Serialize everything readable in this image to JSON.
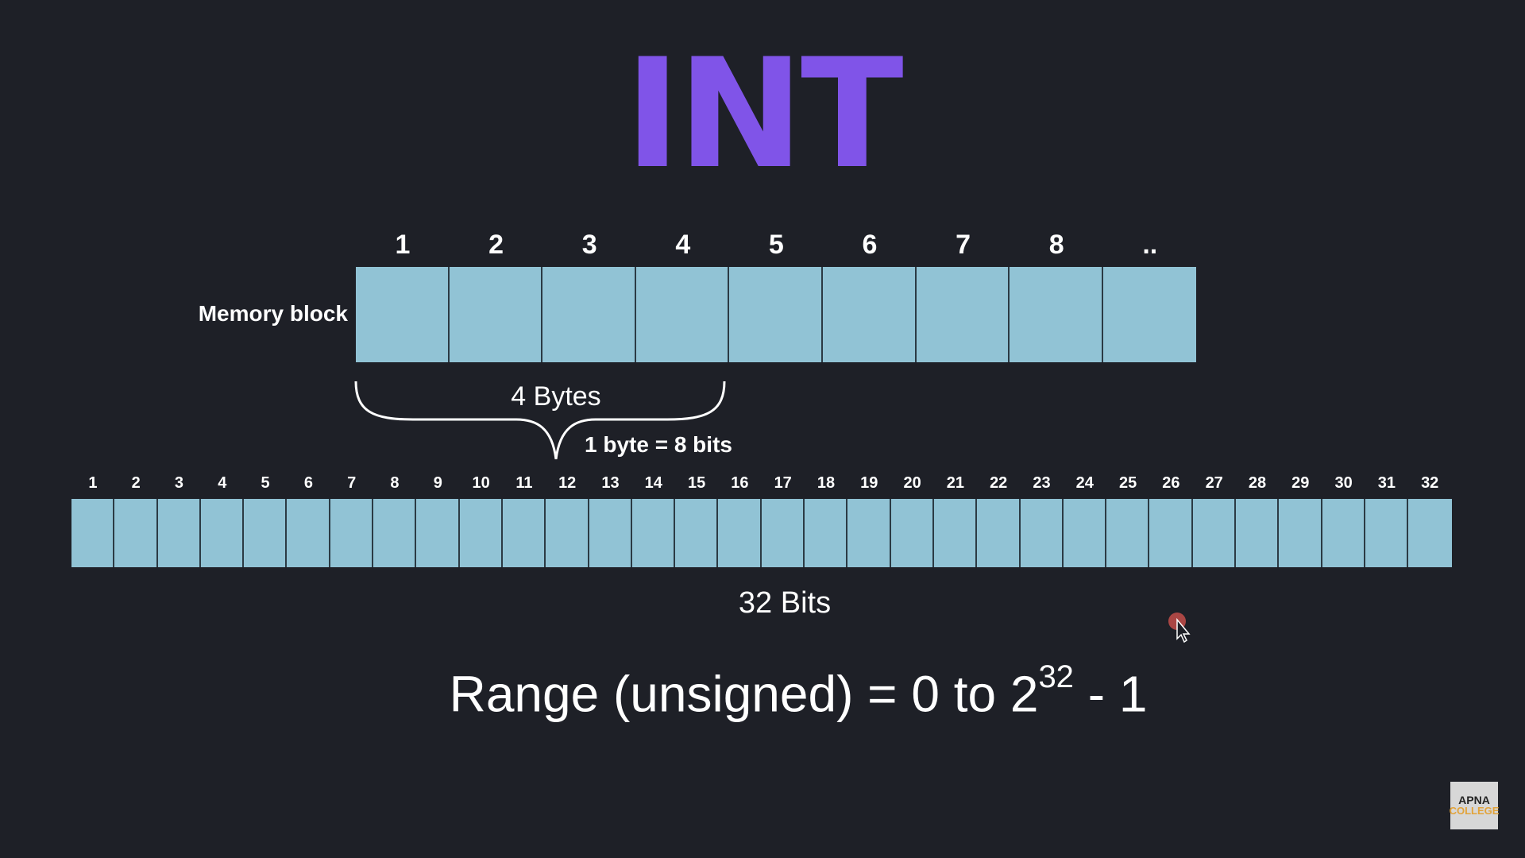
{
  "title": "INT",
  "memory_block": {
    "label": "Memory block",
    "byte_numbers": [
      "1",
      "2",
      "3",
      "4",
      "5",
      "6",
      "7",
      "8",
      ".."
    ]
  },
  "bytes": {
    "label": "4 Bytes",
    "conversion": "1 byte = 8 bits"
  },
  "bits": {
    "numbers": [
      "1",
      "2",
      "3",
      "4",
      "5",
      "6",
      "7",
      "8",
      "9",
      "10",
      "11",
      "12",
      "13",
      "14",
      "15",
      "16",
      "17",
      "18",
      "19",
      "20",
      "21",
      "22",
      "23",
      "24",
      "25",
      "26",
      "27",
      "28",
      "29",
      "30",
      "31",
      "32"
    ],
    "total_label": "32 Bits"
  },
  "range": {
    "prefix": "Range (unsigned) = 0 to 2",
    "exponent": "32",
    "suffix": " - 1"
  },
  "logo": {
    "line1": "APNA",
    "line2": "COLLEGE"
  },
  "colors": {
    "background": "#1e2027",
    "title": "#8054e8",
    "cell": "#91c3d5"
  }
}
